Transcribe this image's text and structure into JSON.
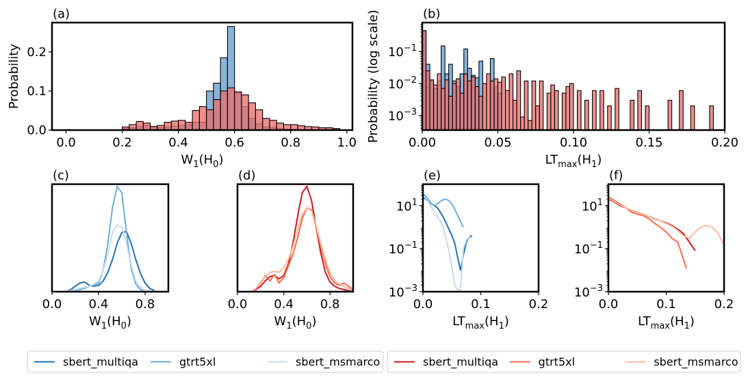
{
  "panel_labels": [
    "(a)",
    "(b)",
    "(c)",
    "(d)",
    "(e)",
    "(f)"
  ],
  "legend_left": {
    "entries": [
      {
        "name": "sbert_multiqa",
        "color": "#2171b5"
      },
      {
        "name": "gtrt5xl",
        "color": "#6baed6"
      },
      {
        "name": "sbert_msmarco",
        "color": "#c6dbef"
      }
    ]
  },
  "legend_right": {
    "entries": [
      {
        "name": "sbert_multiqa",
        "color": "#cb181d"
      },
      {
        "name": "gtrt5xl",
        "color": "#fb6a4a"
      },
      {
        "name": "sbert_msmarco",
        "color": "#fcbba1"
      }
    ]
  },
  "hist_colors": {
    "blue": "#6ba0cf",
    "red": "#e8706d"
  },
  "chart_data": [
    {
      "panel": "a",
      "type": "histogram",
      "xlabel": "W",
      "xlabel_sub": "1",
      "xlabel_suffix": "(H",
      "xlabel_suffix_sub": "0",
      "xlabel_end": ")",
      "ylabel": "Probability",
      "xlim": [
        -0.05,
        1.02
      ],
      "ylim": [
        0,
        0.275
      ],
      "xticks": [
        0.0,
        0.2,
        0.4,
        0.6,
        0.8,
        1.0
      ],
      "xtick_labels": [
        "0.0",
        "0.2",
        "0.4",
        "0.6",
        "0.8",
        "1.0"
      ],
      "yticks": [
        0.0,
        0.1,
        0.2
      ],
      "ytick_labels": [
        "0.0",
        "0.1",
        "0.2"
      ],
      "bin_start": 0.2,
      "bin_width": 0.025,
      "series": [
        {
          "name": "blue",
          "values": [
            0.004,
            0.006,
            0.009,
            0.012,
            0.009,
            0.006,
            0.008,
            0.01,
            0.012,
            0.014,
            0.02,
            0.02,
            0.1,
            0.12,
            0.185,
            0.265,
            0.095,
            0.06,
            0.03,
            0.016,
            0.008,
            0.006,
            0.004,
            0.002,
            0.002,
            0.001,
            0.001,
            0.001,
            0.0,
            0.0,
            0.0
          ]
        },
        {
          "name": "red",
          "values": [
            0.008,
            0.014,
            0.022,
            0.018,
            0.009,
            0.012,
            0.02,
            0.023,
            0.025,
            0.02,
            0.05,
            0.06,
            0.052,
            0.078,
            0.1,
            0.108,
            0.098,
            0.09,
            0.07,
            0.052,
            0.03,
            0.025,
            0.018,
            0.014,
            0.014,
            0.011,
            0.009,
            0.008,
            0.006,
            0.006,
            0.004
          ]
        }
      ]
    },
    {
      "panel": "b",
      "type": "histogram",
      "xlabel": "LT",
      "xlabel_sub": "max",
      "xlabel_suffix": "(H",
      "xlabel_suffix_sub": "1",
      "xlabel_end": ")",
      "ylabel": "Probability (log scale)",
      "yscale": "log",
      "xlim": [
        0,
        0.2
      ],
      "ylim": [
        0.00035,
        0.8
      ],
      "xticks": [
        0.0,
        0.05,
        0.1,
        0.15,
        0.2
      ],
      "xtick_labels": [
        "0.00",
        "0.05",
        "0.10",
        "0.15",
        "0.20"
      ],
      "yticks": [
        0.001,
        0.01,
        0.1
      ],
      "ytick_labels": [
        [
          "10",
          "−3"
        ],
        [
          "10",
          "−2"
        ],
        [
          "10",
          "−1"
        ]
      ],
      "bin_start": 0,
      "bin_width": 0.0025,
      "series": [
        {
          "name": "blue",
          "values": [
            0.45,
            0.04,
            0.012,
            0.007,
            0.012,
            0.15,
            0.02,
            0.04,
            0.012,
            0.008,
            0.02,
            0.12,
            0.03,
            0.018,
            0.015,
            0.05,
            0.0,
            0.0,
            0.06,
            0.008,
            0.005
          ]
        },
        {
          "name": "red",
          "values": [
            0.45,
            0.025,
            0.013,
            0.009,
            0.02,
            0.007,
            0.013,
            0.004,
            0.01,
            0.014,
            0.005,
            0.02,
            0.012,
            0.016,
            0.008,
            0.004,
            0.01,
            0.02,
            0.012,
            0.014,
            0.011,
            0.016,
            0.006,
            0.02,
            0.003,
            0.025,
            0.0009,
            0.012,
            0.0007,
            0.012,
            0.002,
            0.012,
            0.0,
            0.005,
            0.009,
            0.006,
            0.0,
            0.005,
            0.008,
            0.01,
            0.0,
            0.006,
            0.0,
            0.003,
            0.0,
            0.006,
            0.0,
            0.006,
            0.0,
            0.002,
            0.0,
            0.007,
            0.0,
            0.0,
            0.0,
            0.003,
            0.0,
            0.006,
            0.0,
            0.002,
            0.0,
            0.0,
            0.0,
            0.0,
            0.0,
            0.003,
            0.0,
            0.0,
            0.006,
            0.0,
            0.0,
            0.002,
            0.0,
            0.0,
            0.0,
            0.0,
            0.002,
            0.0,
            0.0,
            0.0,
            0.0,
            0.0,
            0.0,
            0.0,
            0.0,
            0.0,
            0.0,
            0.0
          ]
        }
      ]
    },
    {
      "panel": "c",
      "type": "line",
      "xlabel": "W",
      "xlabel_sub": "1",
      "xlabel_suffix": "(H",
      "xlabel_suffix_sub": "0",
      "xlabel_end": ")",
      "xlim": [
        0,
        1
      ],
      "ylim": [
        0,
        1
      ],
      "xticks": [
        0.0,
        0.4,
        0.8
      ],
      "xtick_labels": [
        "0.0",
        "0.4",
        "0.8"
      ],
      "x": [
        0.12,
        0.16,
        0.2,
        0.24,
        0.28,
        0.32,
        0.36,
        0.4,
        0.44,
        0.48,
        0.52,
        0.56,
        0.6,
        0.64,
        0.68,
        0.72,
        0.76,
        0.8,
        0.84,
        0.88
      ],
      "series": [
        {
          "name": "sbert_multiqa",
          "color": "#2171b5",
          "values": [
            0.0,
            0.02,
            0.05,
            0.08,
            0.09,
            0.06,
            0.05,
            0.06,
            0.1,
            0.18,
            0.3,
            0.45,
            0.55,
            0.56,
            0.45,
            0.3,
            0.17,
            0.08,
            0.03,
            0.01
          ]
        },
        {
          "name": "gtrt5xl",
          "color": "#6baed6",
          "values": [
            0.0,
            0.0,
            0.01,
            0.02,
            0.03,
            0.05,
            0.06,
            0.08,
            0.2,
            0.45,
            0.78,
            0.98,
            0.92,
            0.55,
            0.22,
            0.07,
            0.02,
            0.0,
            0.0,
            0.0
          ]
        },
        {
          "name": "sbert_msmarco",
          "color": "#c6dbef",
          "values": [
            0.0,
            0.01,
            0.02,
            0.03,
            0.04,
            0.05,
            0.07,
            0.1,
            0.2,
            0.35,
            0.55,
            0.62,
            0.6,
            0.45,
            0.25,
            0.1,
            0.04,
            0.01,
            0.0,
            0.0
          ]
        }
      ]
    },
    {
      "panel": "d",
      "type": "line",
      "xlabel": "W",
      "xlabel_sub": "1",
      "xlabel_suffix": "(H",
      "xlabel_suffix_sub": "0",
      "xlabel_end": ")",
      "xlim": [
        0,
        1
      ],
      "ylim": [
        0,
        1
      ],
      "xticks": [
        0.0,
        0.4,
        0.8
      ],
      "xtick_labels": [
        "0.0",
        "0.4",
        "0.8"
      ],
      "x": [
        0.12,
        0.16,
        0.2,
        0.24,
        0.28,
        0.32,
        0.36,
        0.4,
        0.44,
        0.48,
        0.52,
        0.56,
        0.6,
        0.64,
        0.68,
        0.72,
        0.76,
        0.8,
        0.84,
        0.88,
        0.92,
        0.96,
        1.0
      ],
      "series": [
        {
          "name": "sbert_multiqa",
          "color": "#cb181d",
          "values": [
            0.0,
            0.02,
            0.05,
            0.1,
            0.14,
            0.15,
            0.12,
            0.15,
            0.26,
            0.45,
            0.7,
            0.92,
            0.98,
            0.85,
            0.6,
            0.36,
            0.18,
            0.09,
            0.05,
            0.03,
            0.02,
            0.01,
            0.0
          ]
        },
        {
          "name": "gtrt5xl",
          "color": "#fb6a4a",
          "values": [
            0.0,
            0.03,
            0.08,
            0.15,
            0.1,
            0.16,
            0.08,
            0.13,
            0.24,
            0.35,
            0.5,
            0.68,
            0.78,
            0.76,
            0.6,
            0.42,
            0.26,
            0.14,
            0.08,
            0.06,
            0.08,
            0.05,
            0.02
          ]
        },
        {
          "name": "sbert_msmarco",
          "color": "#fcbba1",
          "values": [
            0.0,
            0.03,
            0.09,
            0.14,
            0.18,
            0.19,
            0.18,
            0.22,
            0.3,
            0.42,
            0.58,
            0.72,
            0.78,
            0.75,
            0.62,
            0.45,
            0.3,
            0.18,
            0.1,
            0.07,
            0.05,
            0.03,
            0.01
          ]
        }
      ]
    },
    {
      "panel": "e",
      "type": "line",
      "yscale": "log",
      "xlabel": "LT",
      "xlabel_sub": "max",
      "xlabel_suffix": "(H",
      "xlabel_suffix_sub": "1",
      "xlabel_end": ")",
      "xlim": [
        0,
        0.2
      ],
      "ylim": [
        0.001,
        100
      ],
      "xticks": [
        0.0,
        0.1,
        0.2
      ],
      "xtick_labels": [
        "0.0",
        "0.1",
        "0.2"
      ],
      "yticks": [
        0.001,
        0.1,
        10
      ],
      "ytick_labels": [
        [
          "10",
          "−3"
        ],
        [
          "10",
          "−1"
        ],
        [
          "10",
          "1"
        ]
      ],
      "series": [
        {
          "name": "sbert_multiqa",
          "color": "#2171b5",
          "x": [
            0.0,
            0.005,
            0.01,
            0.015,
            0.02,
            0.025,
            0.03,
            0.035,
            0.04,
            0.045,
            0.05,
            0.055,
            0.06,
            0.065,
            0.07,
            0.075,
            0.08,
            0.085
          ],
          "y": [
            25,
            20,
            15,
            12,
            10,
            8,
            5,
            3,
            1.6,
            0.8,
            0.4,
            0.18,
            0.04,
            0.01,
            0.05,
            0.2,
            0.35,
            0.4
          ]
        },
        {
          "name": "gtrt5xl",
          "color": "#6baed6",
          "x": [
            0.0,
            0.005,
            0.01,
            0.015,
            0.02,
            0.025,
            0.03,
            0.035,
            0.04,
            0.045,
            0.05,
            0.055,
            0.06,
            0.065,
            0.07
          ],
          "y": [
            35,
            28,
            18,
            12,
            10,
            12,
            16,
            19,
            20,
            17,
            12,
            7,
            3.5,
            1.8,
            1.0
          ]
        },
        {
          "name": "sbert_msmarco",
          "color": "#c6dbef",
          "x": [
            0.0,
            0.005,
            0.01,
            0.015,
            0.02,
            0.025,
            0.03,
            0.035,
            0.04,
            0.045,
            0.05,
            0.055,
            0.06,
            0.065,
            0.07,
            0.075,
            0.08,
            0.085
          ],
          "y": [
            30,
            22,
            14,
            8,
            5,
            3,
            2,
            1,
            0.3,
            0.08,
            0.015,
            0.002,
            0.0012,
            0.0012,
            0.1,
            0.25,
            0.35,
            0.3
          ]
        }
      ]
    },
    {
      "panel": "f",
      "type": "line",
      "yscale": "log",
      "xlabel": "LT",
      "xlabel_sub": "max",
      "xlabel_suffix": "(H",
      "xlabel_suffix_sub": "1",
      "xlabel_end": ")",
      "xlim": [
        0,
        0.2
      ],
      "ylim": [
        0.001,
        100
      ],
      "xticks": [
        0.0,
        0.1,
        0.2
      ],
      "xtick_labels": [
        "0.0",
        "0.1",
        "0.2"
      ],
      "yticks": [
        0.001,
        0.1,
        10
      ],
      "ytick_labels": [
        [
          "10",
          "−3"
        ],
        [
          "10",
          "−1"
        ],
        [
          "10",
          "1"
        ]
      ],
      "series": [
        {
          "name": "sbert_multiqa",
          "color": "#cb181d",
          "x": [
            0.0,
            0.01,
            0.02,
            0.03,
            0.04,
            0.05,
            0.06,
            0.07,
            0.08,
            0.09,
            0.1,
            0.11,
            0.12,
            0.13,
            0.14,
            0.15
          ],
          "y": [
            20,
            15,
            10,
            8,
            6,
            5,
            4,
            3.2,
            2.5,
            2.0,
            1.6,
            1.2,
            0.8,
            0.5,
            0.2,
            0.08
          ]
        },
        {
          "name": "gtrt5xl",
          "color": "#fb6a4a",
          "x": [
            0.0,
            0.01,
            0.02,
            0.03,
            0.04,
            0.05,
            0.06,
            0.07,
            0.08,
            0.09,
            0.1,
            0.11,
            0.12,
            0.13,
            0.135
          ],
          "y": [
            25,
            18,
            12,
            8,
            5,
            4,
            3.5,
            2.5,
            1.5,
            1.0,
            0.6,
            0.3,
            0.2,
            0.03,
            0.012
          ]
        },
        {
          "name": "sbert_msmarco",
          "color": "#fcbba1",
          "x": [
            0.0,
            0.01,
            0.02,
            0.03,
            0.04,
            0.05,
            0.06,
            0.07,
            0.08,
            0.09,
            0.1,
            0.11,
            0.12,
            0.13,
            0.14,
            0.15,
            0.16,
            0.17,
            0.18,
            0.19,
            0.2
          ],
          "y": [
            22,
            16,
            11,
            8,
            6,
            5,
            4,
            3.2,
            2.6,
            2.0,
            1.5,
            1.1,
            0.7,
            0.4,
            0.3,
            0.6,
            1.0,
            1.2,
            1.0,
            0.5,
            0.15
          ]
        }
      ]
    }
  ]
}
